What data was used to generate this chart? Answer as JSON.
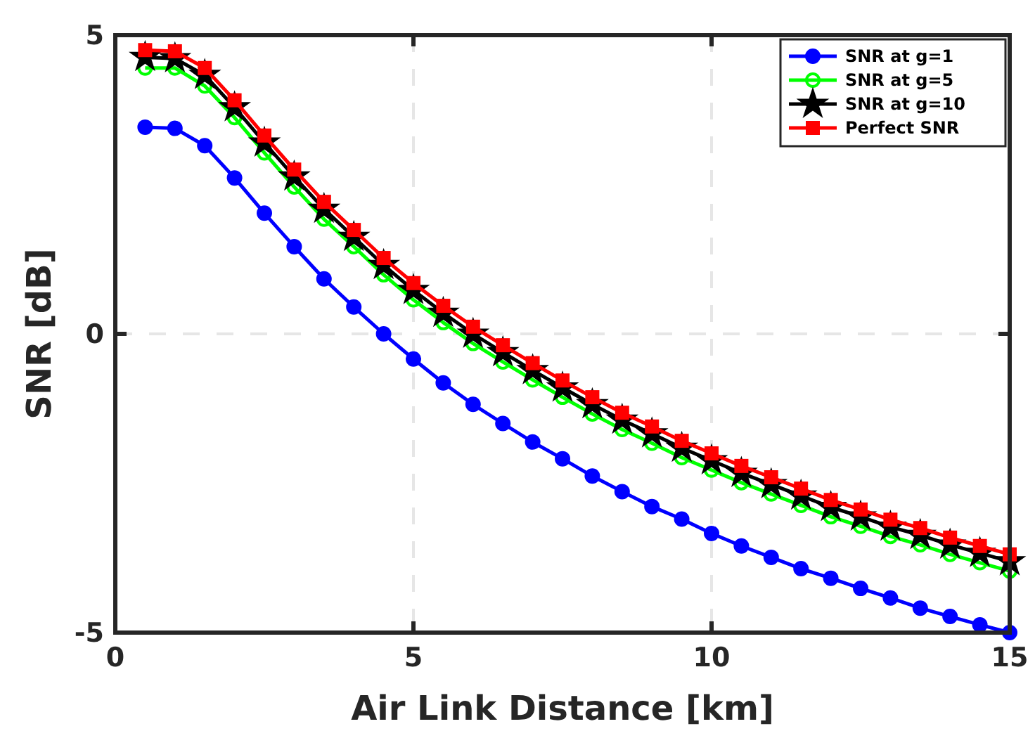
{
  "chart_data": {
    "type": "line",
    "xlabel": "Air Link Distance [km]",
    "ylabel": "SNR [dB]",
    "x": [
      0.5,
      1,
      1.5,
      2,
      2.5,
      3,
      3.5,
      4,
      4.5,
      5,
      5.5,
      6,
      6.5,
      7,
      7.5,
      8,
      8.5,
      9,
      9.5,
      10,
      10.5,
      11,
      11.5,
      12,
      12.5,
      13,
      13.5,
      14,
      14.5,
      15
    ],
    "xlim": [
      0,
      15
    ],
    "xticks": [
      0,
      5,
      10,
      15
    ],
    "ylim": [
      -5,
      5
    ],
    "yticks": [
      -5,
      0,
      5
    ],
    "grid": true,
    "legend": "top right",
    "series": [
      {
        "name": "SNR at g=1",
        "color": "#0000ff",
        "marker": "circle",
        "values": [
          3.46,
          3.44,
          3.15,
          2.61,
          2.02,
          1.46,
          0.92,
          0.45,
          0.0,
          -0.42,
          -0.82,
          -1.18,
          -1.5,
          -1.81,
          -2.09,
          -2.38,
          -2.64,
          -2.89,
          -3.1,
          -3.34,
          -3.55,
          -3.74,
          -3.93,
          -4.09,
          -4.26,
          -4.42,
          -4.59,
          -4.73,
          -4.87,
          -5.0
        ]
      },
      {
        "name": "SNR at g=5",
        "color": "#00ff00",
        "marker": "circle",
        "values": [
          4.45,
          4.45,
          4.15,
          3.62,
          3.03,
          2.46,
          1.92,
          1.46,
          0.99,
          0.57,
          0.19,
          -0.16,
          -0.47,
          -0.77,
          -1.06,
          -1.34,
          -1.6,
          -1.83,
          -2.07,
          -2.28,
          -2.49,
          -2.68,
          -2.87,
          -3.06,
          -3.22,
          -3.39,
          -3.53,
          -3.69,
          -3.83,
          -3.97
        ]
      },
      {
        "name": "SNR at g=10",
        "color": "#000000",
        "marker": "star",
        "values": [
          4.63,
          4.61,
          4.33,
          3.79,
          3.2,
          2.63,
          2.09,
          1.62,
          1.15,
          0.73,
          0.35,
          0.0,
          -0.31,
          -0.61,
          -0.9,
          -1.18,
          -1.44,
          -1.67,
          -1.91,
          -2.12,
          -2.33,
          -2.52,
          -2.71,
          -2.9,
          -3.06,
          -3.23,
          -3.37,
          -3.53,
          -3.67,
          -3.81
        ]
      },
      {
        "name": "Perfect SNR",
        "color": "#ff0000",
        "marker": "square",
        "values": [
          4.75,
          4.73,
          4.45,
          3.91,
          3.32,
          2.75,
          2.21,
          1.74,
          1.27,
          0.85,
          0.47,
          0.12,
          -0.19,
          -0.49,
          -0.78,
          -1.06,
          -1.32,
          -1.55,
          -1.79,
          -2.0,
          -2.21,
          -2.4,
          -2.59,
          -2.78,
          -2.94,
          -3.11,
          -3.25,
          -3.41,
          -3.55,
          -3.69
        ]
      }
    ]
  }
}
